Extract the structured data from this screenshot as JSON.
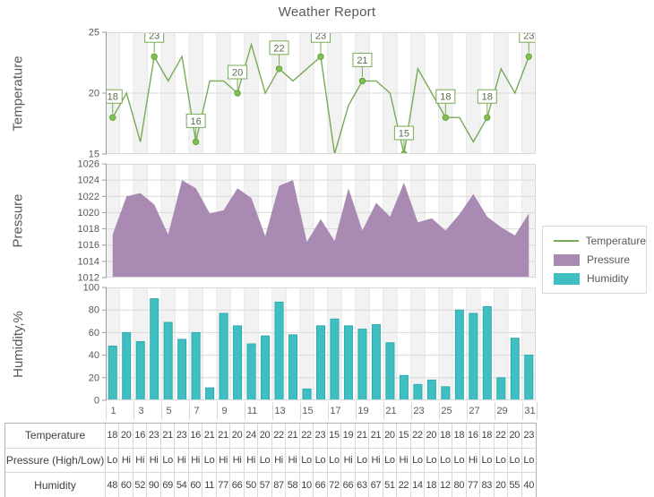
{
  "title": "Weather Report",
  "x_axis": {
    "tick_labels": [
      1,
      3,
      5,
      7,
      9,
      11,
      13,
      15,
      17,
      19,
      21,
      23,
      25,
      27,
      29,
      31
    ]
  },
  "legend": {
    "items": [
      {
        "label": "Temperature",
        "type": "line",
        "color": "#77ab56"
      },
      {
        "label": "Pressure",
        "type": "area",
        "color": "#a98ab2"
      },
      {
        "label": "Humidity",
        "type": "bar",
        "color": "#40bfc3"
      }
    ]
  },
  "chart_data": [
    {
      "id": "temperature",
      "type": "line",
      "ylabel": "Temperature",
      "x": [
        1,
        2,
        3,
        4,
        5,
        6,
        7,
        8,
        9,
        10,
        11,
        12,
        13,
        14,
        15,
        16,
        17,
        18,
        19,
        20,
        21,
        22,
        23,
        24,
        25,
        26,
        27,
        28,
        29,
        30,
        31
      ],
      "values": [
        18,
        20,
        16,
        23,
        21,
        23,
        16,
        21,
        21,
        20,
        24,
        20,
        22,
        21,
        22,
        23,
        15,
        19,
        21,
        21,
        20,
        15,
        22,
        20,
        18,
        18,
        16,
        18,
        22,
        20,
        23
      ],
      "ylim": [
        15,
        25
      ],
      "yticks": [
        15,
        20,
        25
      ],
      "label_every": 3,
      "labeled_values": [
        18,
        23,
        16,
        20,
        22,
        23,
        21,
        15,
        18,
        18,
        23
      ],
      "color": "#77ab56",
      "marker_fill": "#7cc24e",
      "marker_stroke": "#69a33f",
      "callout_text_color": "#5a6b4d"
    },
    {
      "id": "pressure",
      "type": "area",
      "ylabel": "Pressure",
      "x": [
        1,
        2,
        3,
        4,
        5,
        6,
        7,
        8,
        9,
        10,
        11,
        12,
        13,
        14,
        15,
        16,
        17,
        18,
        19,
        20,
        21,
        22,
        23,
        24,
        25,
        26,
        27,
        28,
        29,
        30,
        31
      ],
      "values": [
        1017.3,
        1022.0,
        1022.4,
        1021.0,
        1017.3,
        1024.0,
        1023.0,
        1019.9,
        1020.3,
        1023.0,
        1021.8,
        1017.1,
        1023.3,
        1024.0,
        1016.4,
        1019.2,
        1016.5,
        1023.0,
        1017.8,
        1021.2,
        1019.5,
        1023.7,
        1018.8,
        1019.3,
        1017.8,
        1019.8,
        1022.3,
        1019.5,
        1018.2,
        1017.2,
        1019.9
      ],
      "ylim": [
        1012,
        1026
      ],
      "yticks": [
        1012,
        1014,
        1016,
        1018,
        1020,
        1022,
        1024,
        1026
      ],
      "color": "#a98ab2"
    },
    {
      "id": "humidity",
      "type": "bar",
      "ylabel": "Humidity,%",
      "x": [
        1,
        2,
        3,
        4,
        5,
        6,
        7,
        8,
        9,
        10,
        11,
        12,
        13,
        14,
        15,
        16,
        17,
        18,
        19,
        20,
        21,
        22,
        23,
        24,
        25,
        26,
        27,
        28,
        29,
        30,
        31
      ],
      "values": [
        48,
        60,
        52,
        90,
        69,
        54,
        60,
        11,
        77,
        66,
        50,
        57,
        87,
        58,
        10,
        66,
        72,
        66,
        63,
        67,
        51,
        22,
        14,
        18,
        12,
        80,
        77,
        83,
        20,
        55,
        40
      ],
      "ylim": [
        0,
        100
      ],
      "yticks": [
        0,
        20,
        40,
        60,
        80,
        100
      ],
      "color": "#40bfc3",
      "bar_stroke": "#2fa9ad"
    }
  ],
  "table": {
    "rows": [
      {
        "header": "Temperature",
        "values": [
          "18",
          "20",
          "16",
          "23",
          "21",
          "23",
          "16",
          "21",
          "21",
          "20",
          "24",
          "20",
          "22",
          "21",
          "22",
          "23",
          "15",
          "19",
          "21",
          "21",
          "20",
          "15",
          "22",
          "20",
          "18",
          "18",
          "16",
          "18",
          "22",
          "20",
          "23"
        ]
      },
      {
        "header": "Pressure (High/Low)",
        "values": [
          "Lo",
          "Hi",
          "Hi",
          "Hi",
          "Lo",
          "Hi",
          "Hi",
          "Lo",
          "Hi",
          "Hi",
          "Hi",
          "Lo",
          "Hi",
          "Hi",
          "Lo",
          "Lo",
          "Lo",
          "Hi",
          "Lo",
          "Hi",
          "Lo",
          "Hi",
          "Lo",
          "Lo",
          "Lo",
          "Lo",
          "Hi",
          "Lo",
          "Lo",
          "Lo",
          "Lo"
        ]
      },
      {
        "header": "Humidity",
        "values": [
          "48",
          "60",
          "52",
          "90",
          "69",
          "54",
          "60",
          "11",
          "77",
          "66",
          "50",
          "57",
          "87",
          "58",
          "10",
          "66",
          "72",
          "66",
          "63",
          "67",
          "51",
          "22",
          "14",
          "18",
          "12",
          "80",
          "77",
          "83",
          "20",
          "55",
          "40"
        ]
      }
    ]
  }
}
